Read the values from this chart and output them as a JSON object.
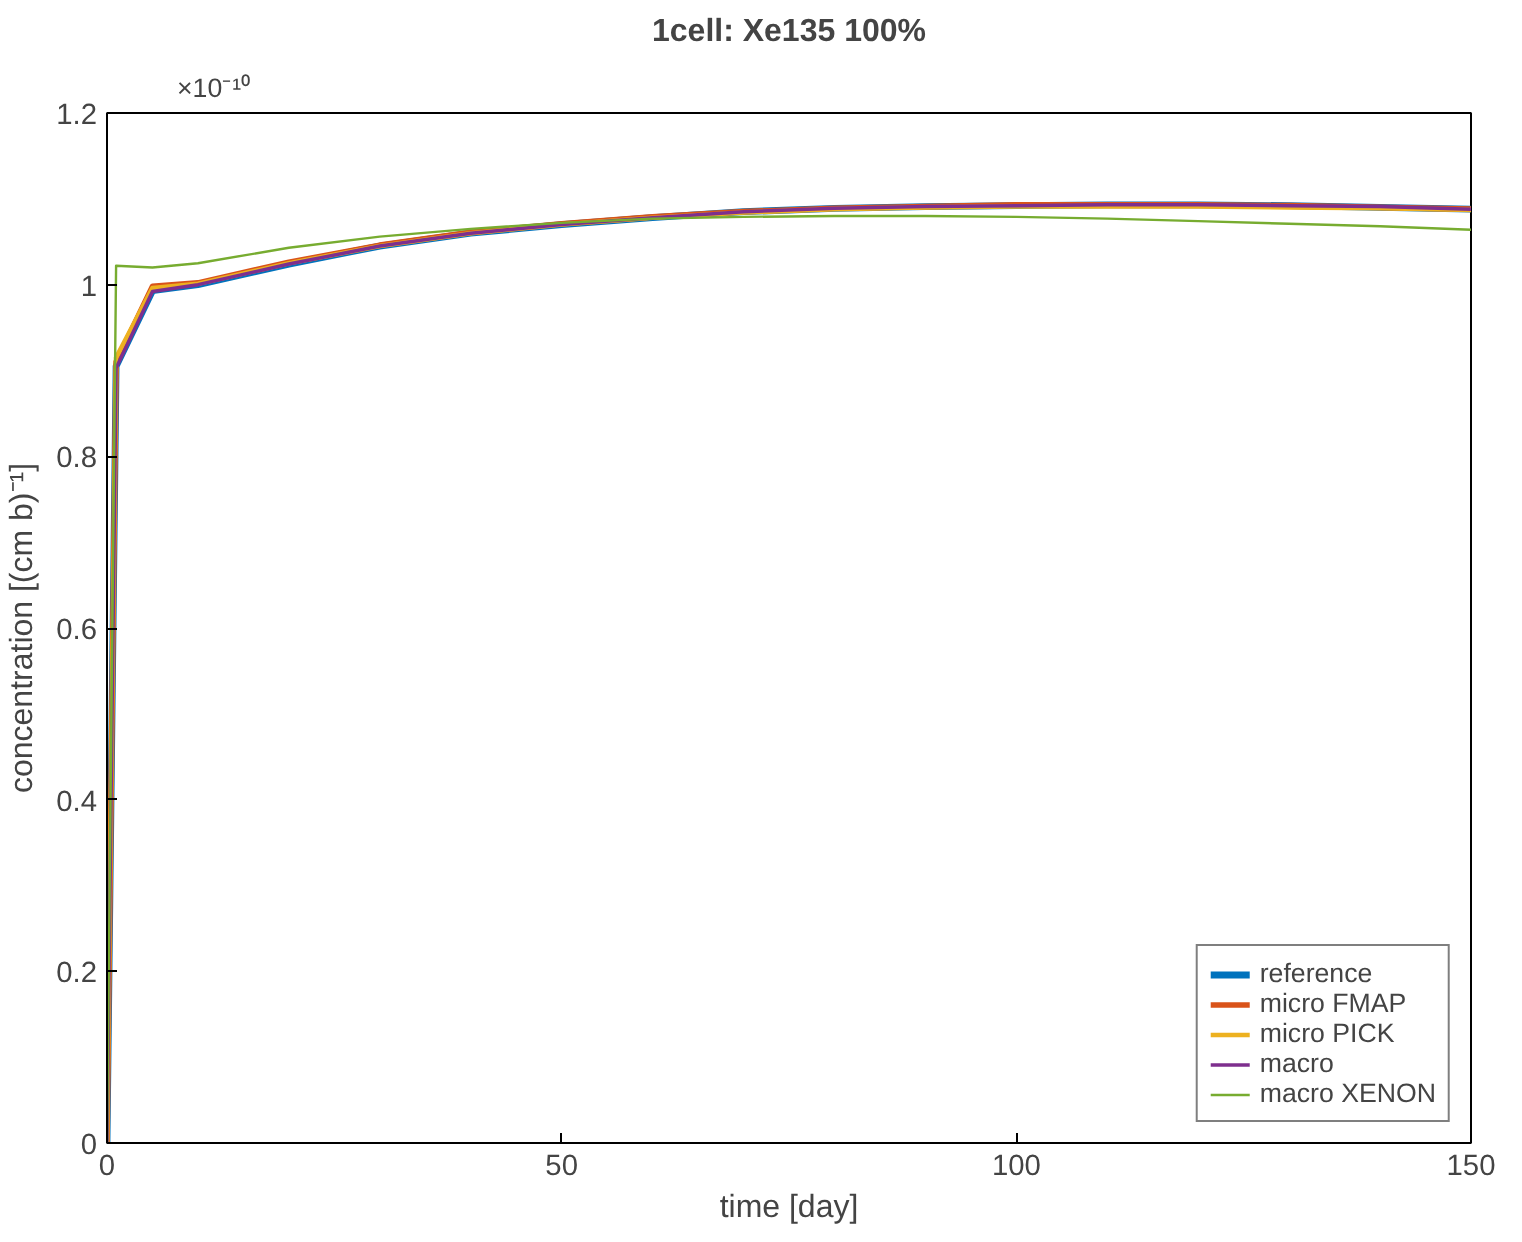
{
  "chart_data": {
    "type": "line",
    "title": "1cell: Xe135 100%",
    "xlabel": "time [day]",
    "ylabel": "concentration [(cm b)⁻¹]",
    "annotations": [
      "×10⁻¹⁰"
    ],
    "x": [
      0,
      1,
      5,
      10,
      20,
      30,
      40,
      50,
      60,
      70,
      80,
      90,
      100,
      110,
      120,
      130,
      140,
      150
    ],
    "series": [
      {
        "name": "reference",
        "color": "#0072bd",
        "values": [
          0,
          0.905,
          0.993,
          1.0,
          1.024,
          1.045,
          1.06,
          1.07,
          1.078,
          1.085,
          1.089,
          1.091,
          1.092,
          1.093,
          1.093,
          1.092,
          1.09,
          1.088
        ]
      },
      {
        "name": "micro FMAP",
        "color": "#d95319",
        "values": [
          0,
          0.91,
          0.998,
          1.002,
          1.026,
          1.046,
          1.061,
          1.071,
          1.079,
          1.085,
          1.089,
          1.091,
          1.093,
          1.093,
          1.093,
          1.092,
          1.09,
          1.088
        ]
      },
      {
        "name": "micro PICK",
        "color": "#edb120",
        "values": [
          0,
          0.915,
          0.996,
          1.001,
          1.025,
          1.045,
          1.06,
          1.07,
          1.078,
          1.084,
          1.088,
          1.09,
          1.091,
          1.091,
          1.091,
          1.09,
          1.089,
          1.087
        ]
      },
      {
        "name": "macro",
        "color": "#7e2f8e",
        "values": [
          0,
          0.903,
          0.992,
          1.0,
          1.024,
          1.045,
          1.06,
          1.07,
          1.078,
          1.085,
          1.089,
          1.091,
          1.092,
          1.093,
          1.093,
          1.092,
          1.091,
          1.088
        ]
      },
      {
        "name": "macro XENON",
        "color": "#77ac30",
        "values": [
          0,
          1.022,
          1.02,
          1.025,
          1.043,
          1.056,
          1.065,
          1.072,
          1.077,
          1.079,
          1.08,
          1.08,
          1.079,
          1.077,
          1.074,
          1.071,
          1.068,
          1.064
        ]
      }
    ],
    "xlim": [
      0,
      150
    ],
    "xticks": [
      0,
      50,
      100,
      150
    ],
    "ylim": [
      0,
      1.2
    ],
    "yticks": [
      0,
      0.2,
      0.4,
      0.6,
      0.8,
      1,
      1.2
    ],
    "grid": false,
    "legend": "bottom right",
    "marker": "none",
    "line_style": "solid"
  }
}
